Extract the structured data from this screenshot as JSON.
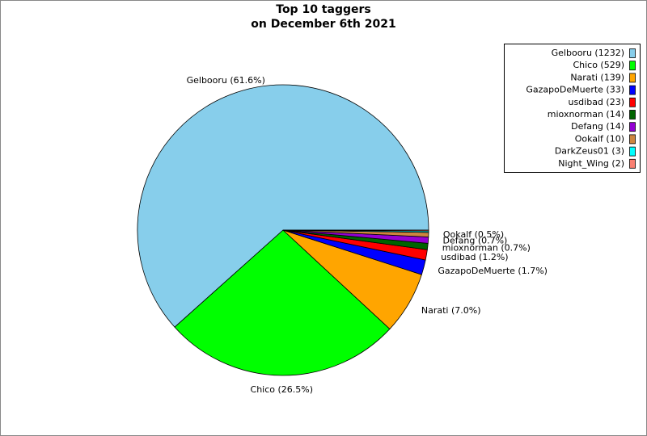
{
  "chart_data": {
    "type": "pie",
    "title": [
      "Top 10 taggers",
      "on December 6th 2021"
    ],
    "categories": [
      "Gelbooru (1232)",
      "Chico (529)",
      "Narati (139)",
      "GazapoDeMuerte (33)",
      "usdibad (23)",
      "mioxnorman (14)",
      "Defang (14)",
      "Ookalf (10)",
      "DarkZeus01 (3)",
      "Night_Wing (2)"
    ],
    "values": [
      1232,
      529,
      139,
      33,
      23,
      14,
      14,
      10,
      3,
      2
    ],
    "value_labels": [
      "Gelbooru (61.6%)",
      "Chico (26.5%)",
      "Narati (7.0%)",
      "GazapoDeMuerte (1.7%)",
      "usdibad (1.2%)",
      "mioxnorman (0.7%)",
      "Defang (0.7%)",
      "Ookalf (0.5%)",
      null,
      null
    ],
    "colors": [
      "#87ceeb",
      "#00ff00",
      "#ffa500",
      "#0000ff",
      "#ff0000",
      "#006400",
      "#9400d3",
      "#cd853f",
      "#00ffff",
      "#fa8072"
    ],
    "legend": "upper right"
  }
}
